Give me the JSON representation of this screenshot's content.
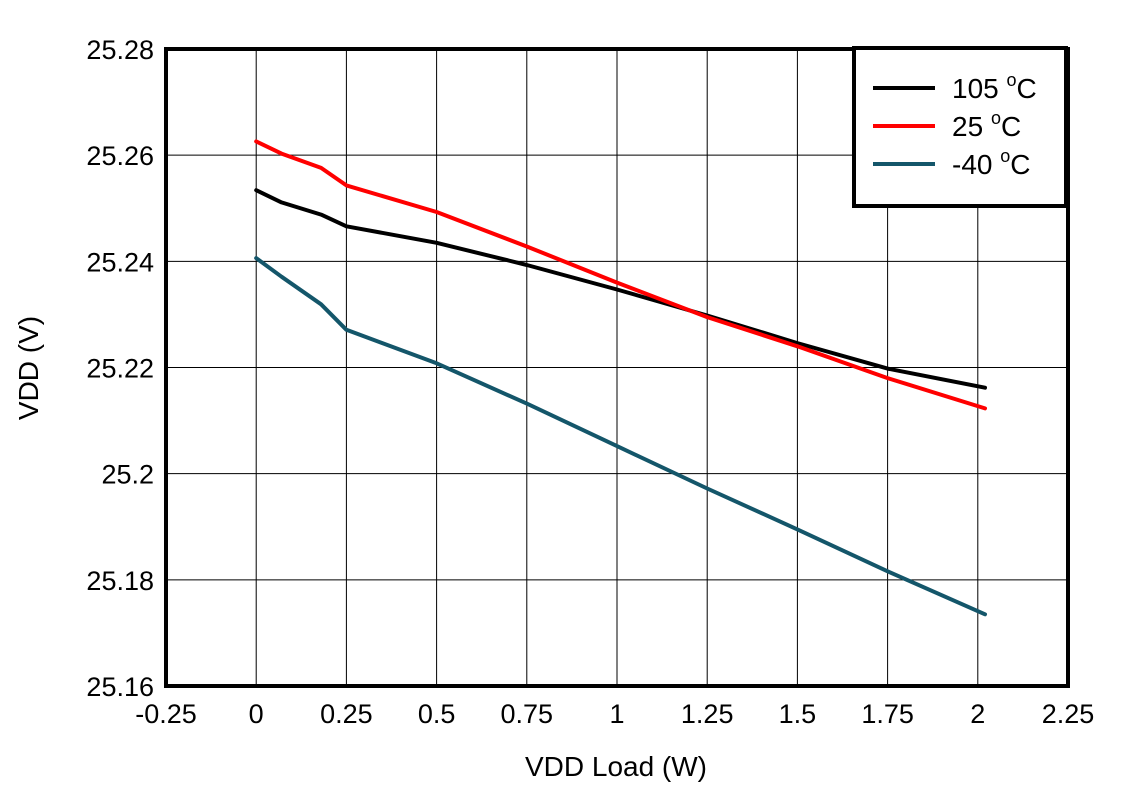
{
  "chart_data": {
    "type": "line",
    "title": "",
    "xlabel": "VDD Load (W)",
    "ylabel": "VDD (V)",
    "xlim": [
      -0.25,
      2.25
    ],
    "ylim": [
      25.16,
      25.28
    ],
    "x_ticks": [
      "-0.25",
      "0",
      "0.25",
      "0.5",
      "0.75",
      "1",
      "1.25",
      "1.5",
      "1.75",
      "2",
      "2.25"
    ],
    "y_ticks": [
      "25.16",
      "25.18",
      "25.2",
      "25.22",
      "25.24",
      "25.26",
      "25.28"
    ],
    "grid": true,
    "legend_position": "top-right",
    "series": [
      {
        "name": "105 °C",
        "label": "105",
        "unit": "C",
        "sup": "o",
        "color": "#000000",
        "points": [
          [
            0,
            25.2534
          ],
          [
            0.07,
            25.2511
          ],
          [
            0.18,
            25.2488
          ],
          [
            0.25,
            25.2466
          ],
          [
            0.5,
            25.2435
          ],
          [
            0.75,
            25.2393
          ],
          [
            1.0,
            25.2347
          ],
          [
            1.25,
            25.2298
          ],
          [
            1.5,
            25.2246
          ],
          [
            1.75,
            25.2198
          ],
          [
            2.02,
            25.2162
          ]
        ]
      },
      {
        "name": "25 °C",
        "label": "25",
        "unit": "C",
        "sup": "o",
        "color": "#ff0000",
        "points": [
          [
            0,
            25.2626
          ],
          [
            0.07,
            25.2603
          ],
          [
            0.18,
            25.2576
          ],
          [
            0.25,
            25.2543
          ],
          [
            0.5,
            25.2493
          ],
          [
            0.75,
            25.2428
          ],
          [
            1.0,
            25.236
          ],
          [
            1.25,
            25.2295
          ],
          [
            1.5,
            25.224
          ],
          [
            1.75,
            25.218
          ],
          [
            2.02,
            25.2123
          ]
        ]
      },
      {
        "name": "-40 °C",
        "label": "-40",
        "unit": "C",
        "sup": "o",
        "color": "#14566a",
        "points": [
          [
            0,
            25.2406
          ],
          [
            0.07,
            25.2371
          ],
          [
            0.18,
            25.2319
          ],
          [
            0.25,
            25.2271
          ],
          [
            0.5,
            25.2208
          ],
          [
            0.75,
            25.2132
          ],
          [
            1.0,
            25.2052
          ],
          [
            1.25,
            25.1972
          ],
          [
            1.5,
            25.1895
          ],
          [
            1.75,
            25.1816
          ],
          [
            2.02,
            25.1735
          ]
        ]
      }
    ]
  }
}
